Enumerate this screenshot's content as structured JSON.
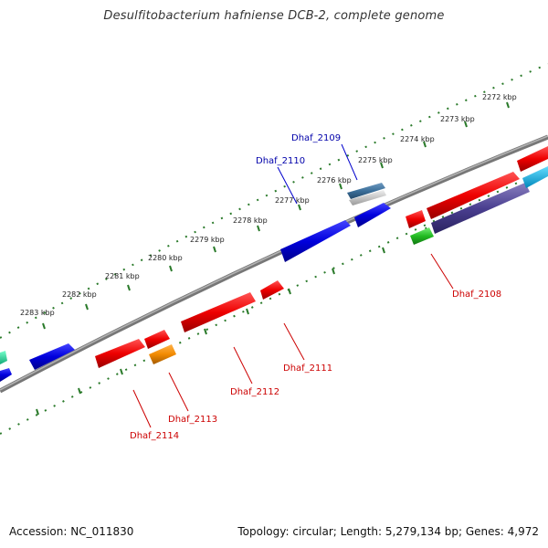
{
  "title": "Desulfitobacterium hafniense DCB-2, complete genome",
  "footer": {
    "accession": "Accession: NC_011830",
    "summary": "Topology: circular; Length: 5,279,134 bp; Genes: 4,972"
  },
  "colors": {
    "backbone": "#808080",
    "tick": "#2a7a2a",
    "forward_gene": "#0000ee",
    "reverse_gene": "#ee0000",
    "forward_label": "#0000aa",
    "reverse_label": "#cc0000"
  },
  "tick_labels": [
    "2272 kbp",
    "2273 kbp",
    "2274 kbp",
    "2275 kbp",
    "2276 kbp",
    "2277 kbp",
    "2278 kbp",
    "2279 kbp",
    "2280 kbp",
    "2281 kbp",
    "2282 kbp",
    "2283 kbp"
  ],
  "gene_labels": {
    "dhaf_2109": "Dhaf_2109",
    "dhaf_2110": "Dhaf_2110",
    "dhaf_2108": "Dhaf_2108",
    "dhaf_2111": "Dhaf_2111",
    "dhaf_2112": "Dhaf_2112",
    "dhaf_2113": "Dhaf_2113",
    "dhaf_2114": "Dhaf_2114"
  }
}
